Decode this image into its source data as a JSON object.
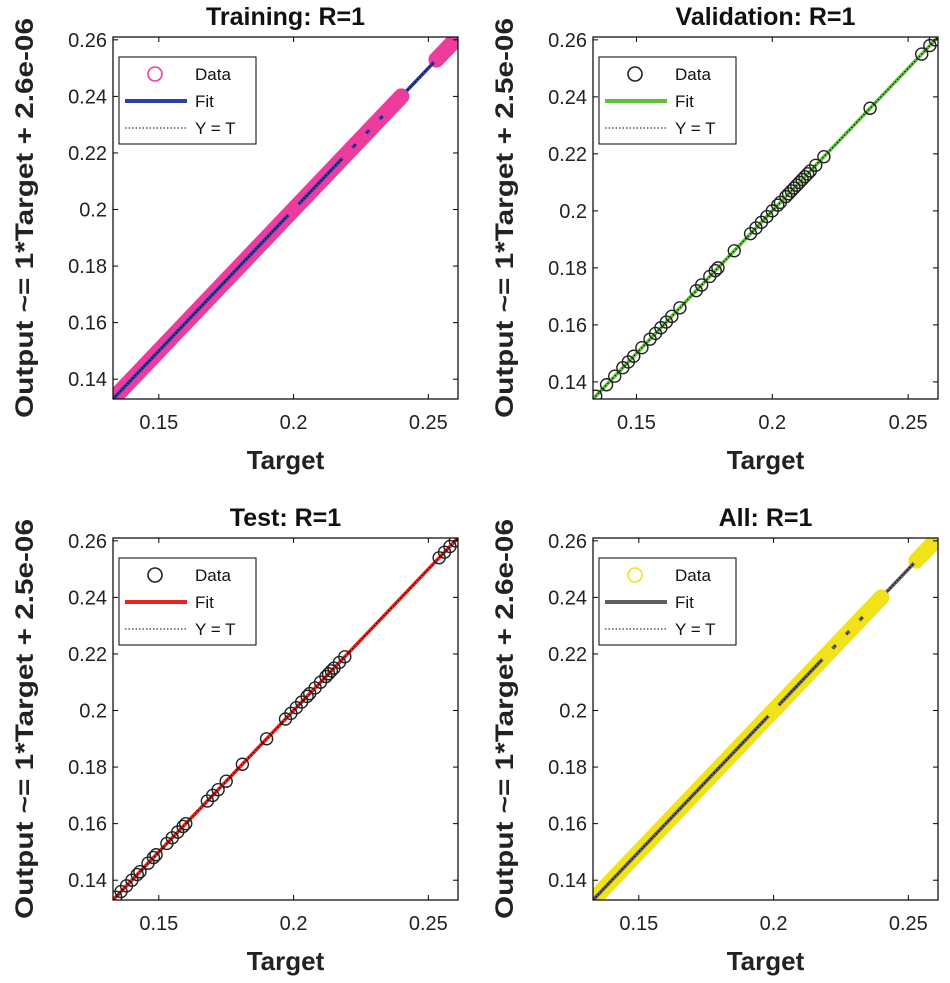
{
  "chart_data": [
    {
      "type": "scatter",
      "title": "Training: R=1",
      "xlabel": "Target",
      "ylabel": "Output ~= 1*Target + 2.6e-06",
      "xlim": [
        0.133,
        0.261
      ],
      "ylim": [
        0.133,
        0.261
      ],
      "xticks": [
        "0.15",
        "0.2",
        "0.25"
      ],
      "yticks": [
        "0.14",
        "0.16",
        "0.18",
        "0.2",
        "0.22",
        "0.24",
        "0.26"
      ],
      "legend_position": "top-left",
      "legend": [
        "Data",
        "Fit",
        "Y = T"
      ],
      "data_color": "#ee3c9e",
      "fit_color": "#2b3fa8",
      "marker_fill": true,
      "dense_segments": [
        [
          0.133,
          0.24
        ],
        [
          0.253,
          0.261
        ]
      ],
      "points": [
        0.2,
        0.22,
        0.225,
        0.23,
        0.235,
        0.238,
        0.24,
        0.254,
        0.256,
        0.258,
        0.26
      ],
      "fit": {
        "slope": 1,
        "intercept": 2.6e-06
      }
    },
    {
      "type": "scatter",
      "title": "Validation: R=1",
      "xlabel": "Target",
      "ylabel": "Output ~= 1*Target + 2.5e-06",
      "xlim": [
        0.134,
        0.261
      ],
      "ylim": [
        0.134,
        0.261
      ],
      "xticks": [
        "0.15",
        "0.2",
        "0.25"
      ],
      "yticks": [
        "0.14",
        "0.16",
        "0.18",
        "0.2",
        "0.22",
        "0.24",
        "0.26"
      ],
      "legend_position": "top-left",
      "legend": [
        "Data",
        "Fit",
        "Y = T"
      ],
      "data_color": "#222222",
      "fit_color": "#5fc13a",
      "marker_fill": false,
      "dense_segments": [],
      "points": [
        0.135,
        0.139,
        0.142,
        0.145,
        0.147,
        0.149,
        0.152,
        0.155,
        0.157,
        0.159,
        0.161,
        0.163,
        0.166,
        0.172,
        0.174,
        0.177,
        0.179,
        0.18,
        0.186,
        0.192,
        0.194,
        0.196,
        0.198,
        0.2,
        0.202,
        0.203,
        0.205,
        0.206,
        0.207,
        0.208,
        0.209,
        0.21,
        0.211,
        0.212,
        0.213,
        0.214,
        0.216,
        0.219,
        0.236,
        0.255,
        0.258,
        0.26
      ],
      "fit": {
        "slope": 1,
        "intercept": 2.5e-06
      }
    },
    {
      "type": "scatter",
      "title": "Test: R=1",
      "xlabel": "Target",
      "ylabel": "Output ~= 1*Target + 2.5e-06",
      "xlim": [
        0.133,
        0.261
      ],
      "ylim": [
        0.133,
        0.261
      ],
      "xticks": [
        "0.15",
        "0.2",
        "0.25"
      ],
      "yticks": [
        "0.14",
        "0.16",
        "0.18",
        "0.2",
        "0.22",
        "0.24",
        "0.26"
      ],
      "legend_position": "top-left",
      "legend": [
        "Data",
        "Fit",
        "Y = T"
      ],
      "data_color": "#222222",
      "fit_color": "#e8241d",
      "marker_fill": false,
      "dense_segments": [],
      "points": [
        0.134,
        0.136,
        0.138,
        0.14,
        0.142,
        0.143,
        0.146,
        0.148,
        0.149,
        0.153,
        0.155,
        0.157,
        0.159,
        0.16,
        0.168,
        0.17,
        0.172,
        0.175,
        0.181,
        0.19,
        0.197,
        0.199,
        0.201,
        0.203,
        0.205,
        0.206,
        0.208,
        0.21,
        0.212,
        0.213,
        0.214,
        0.215,
        0.217,
        0.219,
        0.254,
        0.256,
        0.258,
        0.26
      ],
      "fit": {
        "slope": 1,
        "intercept": 2.5e-06
      }
    },
    {
      "type": "scatter",
      "title": "All: R=1",
      "xlabel": "Target",
      "ylabel": "Output ~= 1*Target + 2.6e-06",
      "xlim": [
        0.133,
        0.261
      ],
      "ylim": [
        0.133,
        0.261
      ],
      "xticks": [
        "0.15",
        "0.2",
        "0.25"
      ],
      "yticks": [
        "0.14",
        "0.16",
        "0.18",
        "0.2",
        "0.22",
        "0.24",
        "0.26"
      ],
      "legend_position": "top-left",
      "legend": [
        "Data",
        "Fit",
        "Y = T"
      ],
      "data_color": "#f2e21a",
      "fit_color": "#5f5f5f",
      "marker_fill": true,
      "dense_segments": [
        [
          0.133,
          0.24
        ],
        [
          0.253,
          0.261
        ]
      ],
      "points": [
        0.2,
        0.22,
        0.225,
        0.23,
        0.235,
        0.238,
        0.24,
        0.254,
        0.256,
        0.258,
        0.26
      ],
      "fit": {
        "slope": 1,
        "intercept": 2.6e-06
      }
    }
  ]
}
